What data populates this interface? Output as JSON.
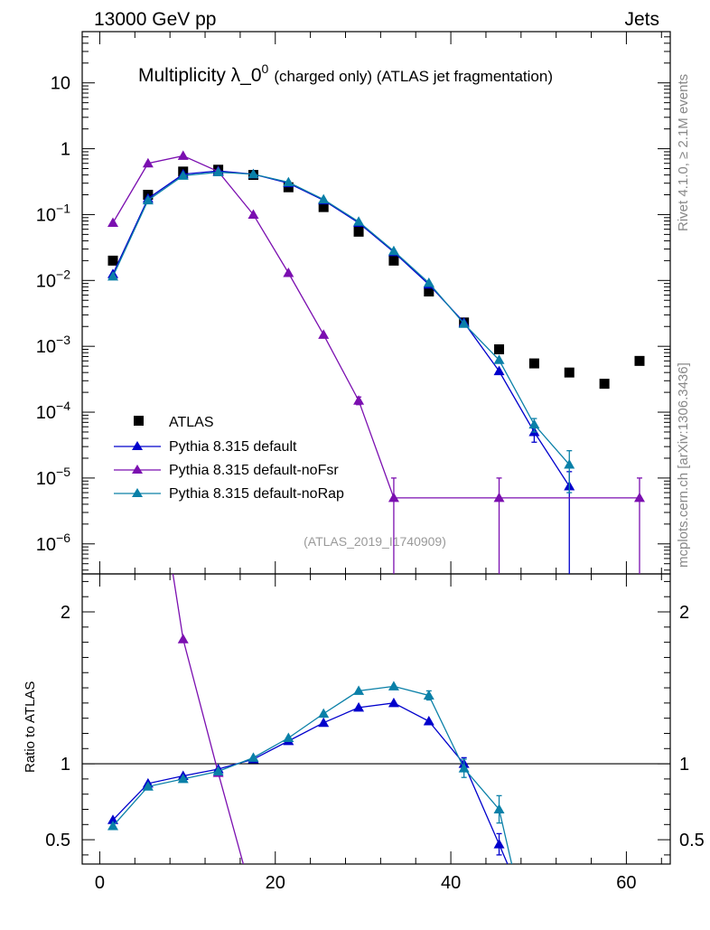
{
  "header": {
    "beam": "13000 GeV pp",
    "process": "Jets",
    "title_main": "Multiplicity λ_0",
    "title_sup": "0",
    "title_rest": "(charged only) (ATLAS jet fragmentation)",
    "analysis_id": "(ATLAS_2019_I1740909)",
    "side_rivet": "Rivet 4.1.0, ≥ 2.1M events",
    "side_mcplots": "mcplots.cern.ch [arXiv:1306.3436]"
  },
  "colors": {
    "atlas": "#000000",
    "default": "#0000cc",
    "nofsr": "#7b0fb0",
    "norap": "#0a80a8"
  },
  "chart_data": [
    {
      "type": "scatter",
      "yscale": "log",
      "xlim": [
        -2,
        65
      ],
      "ylim": [
        3.5e-07,
        60
      ],
      "y_tick_labels": [
        {
          "mant": "10",
          "exp": "−6",
          "value": 1e-06
        },
        {
          "mant": "10",
          "exp": "−5",
          "value": 1e-05
        },
        {
          "mant": "10",
          "exp": "−4",
          "value": 0.0001
        },
        {
          "mant": "10",
          "exp": "−3",
          "value": 0.001
        },
        {
          "mant": "10",
          "exp": "−2",
          "value": 0.01
        },
        {
          "mant": "10",
          "exp": "−1",
          "value": 0.1
        },
        {
          "mant": "1",
          "exp": "",
          "value": 1
        },
        {
          "mant": "10",
          "exp": "",
          "value": 10
        }
      ],
      "legend": [
        "ATLAS",
        "Pythia 8.315 default",
        "Pythia 8.315 default-noFsr",
        "Pythia 8.315 default-noRap"
      ],
      "series": [
        {
          "name": "ATLAS",
          "style": "square",
          "x": [
            1.5,
            5.5,
            9.5,
            13.5,
            17.5,
            21.5,
            25.5,
            29.5,
            33.5,
            37.5,
            41.5,
            45.5,
            49.5,
            53.5,
            57.5,
            61.5
          ],
          "y": [
            0.02,
            0.2,
            0.45,
            0.48,
            0.4,
            0.26,
            0.13,
            0.055,
            0.02,
            0.0068,
            0.0023,
            0.0009,
            0.00055,
            0.0004,
            0.00027,
            0.0006
          ]
        },
        {
          "name": "Pythia 8.315 default",
          "style": "triangle",
          "x": [
            1.5,
            5.5,
            9.5,
            13.5,
            17.5,
            21.5,
            25.5,
            29.5,
            33.5,
            37.5,
            41.5,
            45.5,
            49.5,
            53.5
          ],
          "y": [
            0.0125,
            0.175,
            0.41,
            0.46,
            0.41,
            0.3,
            0.165,
            0.075,
            0.027,
            0.0087,
            0.0023,
            0.00042,
            5e-05,
            7.5e-06
          ],
          "err_lo": [
            0,
            0,
            0,
            0,
            0,
            0,
            0,
            0,
            0,
            0,
            0,
            0,
            1.5e-05,
            7.5e-06
          ],
          "err_hi": [
            0,
            0,
            0,
            0,
            0,
            0,
            0,
            0,
            0,
            0,
            0,
            0,
            1.5e-05,
            5e-06
          ]
        },
        {
          "name": "Pythia 8.315 default-noFsr",
          "style": "triangle",
          "x": [
            1.5,
            5.5,
            9.5,
            13.5,
            17.5,
            21.5,
            25.5,
            29.5,
            33.5,
            45.5,
            61.5
          ],
          "y": [
            0.075,
            0.6,
            0.78,
            0.45,
            0.1,
            0.013,
            0.0015,
            0.00015,
            5e-06,
            5e-06,
            5e-06
          ],
          "err_lo": [
            0,
            0,
            0,
            0,
            0,
            0,
            0,
            2e-05,
            5e-06,
            5e-06,
            5e-06
          ],
          "err_hi": [
            0,
            0,
            0,
            0,
            0,
            0,
            0,
            2e-05,
            5e-06,
            5e-06,
            5e-06
          ]
        },
        {
          "name": "Pythia 8.315 default-noRap",
          "style": "triangle",
          "x": [
            1.5,
            5.5,
            9.5,
            13.5,
            17.5,
            21.5,
            25.5,
            29.5,
            33.5,
            37.5,
            41.5,
            45.5,
            49.5,
            53.5
          ],
          "y": [
            0.0115,
            0.165,
            0.39,
            0.44,
            0.41,
            0.31,
            0.17,
            0.078,
            0.028,
            0.0092,
            0.0022,
            0.00062,
            6.5e-05,
            1.6e-05
          ],
          "err_lo": [
            0,
            0,
            0,
            0,
            0,
            0,
            0,
            0,
            0,
            0,
            0,
            0,
            1.5e-05,
            1e-05
          ],
          "err_hi": [
            0,
            0,
            0,
            0,
            0,
            0,
            0,
            0,
            0,
            0,
            0,
            0,
            1.5e-05,
            1e-05
          ]
        }
      ]
    },
    {
      "type": "line",
      "ylabel": "Ratio to ATLAS",
      "xlim": [
        -2,
        65
      ],
      "ylim": [
        0.34,
        2.25
      ],
      "x_ticks": [
        0,
        20,
        40,
        60
      ],
      "x_tick_labels": [
        "0",
        "20",
        "40",
        "60"
      ],
      "y_ticks": [
        0.5,
        1,
        2
      ],
      "y_tick_labels": [
        "0.5",
        "1",
        "2"
      ],
      "series": [
        {
          "name": "Pythia 8.315 default",
          "x": [
            1.5,
            5.5,
            9.5,
            13.5,
            17.5,
            21.5,
            25.5,
            29.5,
            33.5,
            37.5,
            41.5,
            45.5,
            47.5
          ],
          "y": [
            0.63,
            0.87,
            0.92,
            0.965,
            1.03,
            1.15,
            1.27,
            1.37,
            1.4,
            1.28,
            1.0,
            0.47,
            0.2
          ],
          "draw_marker": [
            true,
            true,
            true,
            true,
            true,
            true,
            true,
            true,
            true,
            true,
            true,
            true,
            false
          ],
          "err": [
            0,
            0,
            0,
            0,
            0,
            0,
            0,
            0,
            0,
            0,
            0.04,
            0.07,
            0
          ]
        },
        {
          "name": "Pythia 8.315 default-noFsr",
          "x": [
            5.5,
            9.5,
            13.5,
            17.5
          ],
          "y": [
            3.3,
            1.82,
            0.94,
            0.1
          ],
          "draw_marker": [
            false,
            true,
            true,
            false
          ],
          "err": [
            0,
            0,
            0,
            0
          ]
        },
        {
          "name": "Pythia 8.315 default-noRap",
          "x": [
            1.5,
            5.5,
            9.5,
            13.5,
            17.5,
            21.5,
            25.5,
            29.5,
            33.5,
            37.5,
            41.5,
            45.5,
            47.5
          ],
          "y": [
            0.59,
            0.85,
            0.9,
            0.95,
            1.04,
            1.17,
            1.33,
            1.48,
            1.51,
            1.45,
            0.97,
            0.7,
            0.2
          ],
          "draw_marker": [
            true,
            true,
            true,
            true,
            true,
            true,
            true,
            true,
            true,
            true,
            true,
            true,
            false
          ],
          "err": [
            0,
            0,
            0,
            0,
            0,
            0,
            0,
            0,
            0,
            0.03,
            0.06,
            0.09,
            0
          ]
        }
      ]
    }
  ]
}
